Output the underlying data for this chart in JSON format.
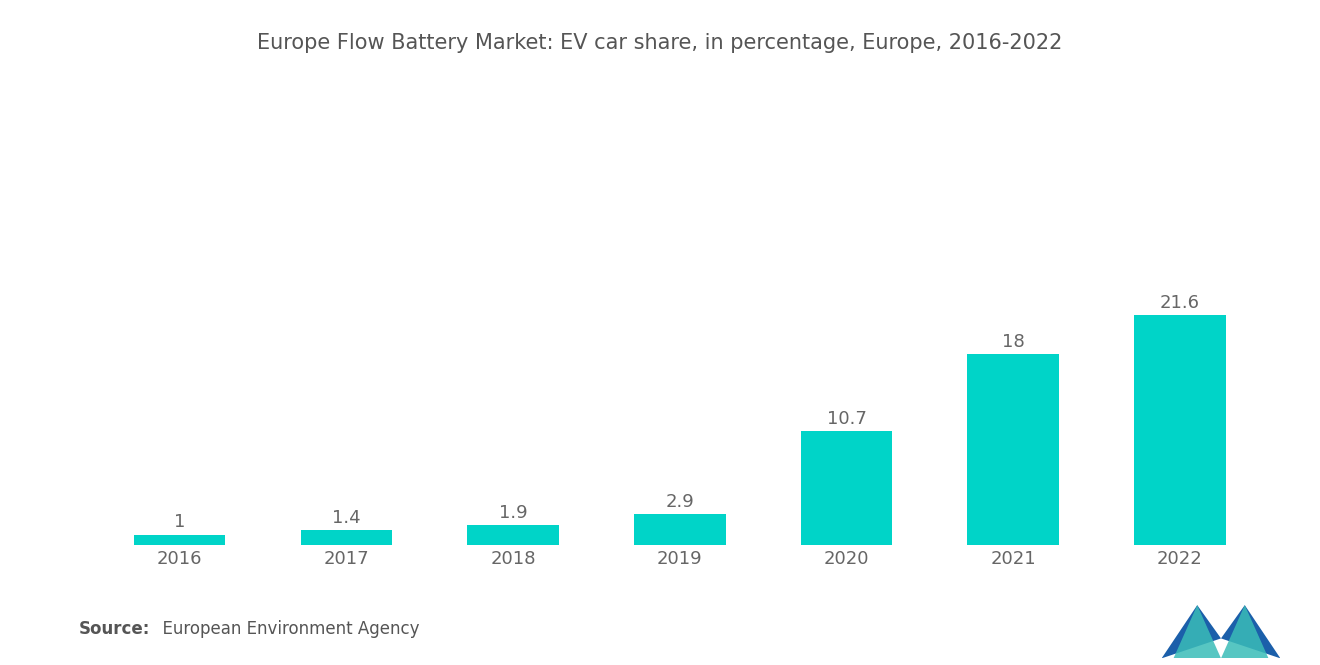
{
  "title": "Europe Flow Battery Market: EV car share, in percentage, Europe, 2016-2022",
  "title_fontsize": 15,
  "categories": [
    "2016",
    "2017",
    "2018",
    "2019",
    "2020",
    "2021",
    "2022"
  ],
  "values": [
    1.0,
    1.4,
    1.9,
    2.9,
    10.7,
    18.0,
    21.6
  ],
  "bar_color": "#00D4C8",
  "label_color": "#666666",
  "background_color": "#FFFFFF",
  "source_bold": "Source:",
  "source_rest": "  European Environment Agency",
  "ylim": [
    0,
    25
  ],
  "bar_width": 0.55,
  "label_fontsize": 13,
  "tick_fontsize": 13,
  "source_fontsize": 12,
  "logo_color1": "#1B5FAA",
  "logo_color2": "#3ABCB8"
}
